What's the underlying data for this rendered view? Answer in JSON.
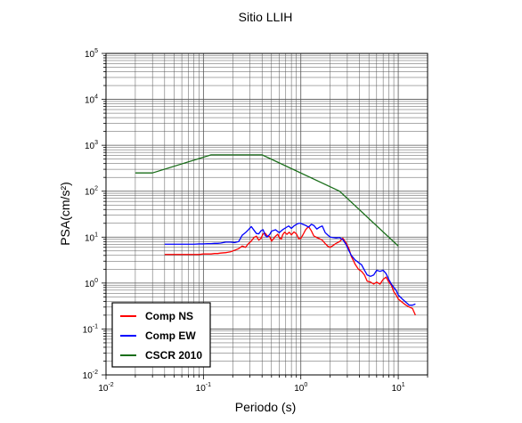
{
  "chart_data": {
    "type": "line",
    "title": "Sitio LLIH",
    "xlabel": "Periodo (s)",
    "ylabel": "PSA(cm/s²)",
    "x_scale": "log",
    "y_scale": "log",
    "xlim": [
      0.01,
      20
    ],
    "ylim": [
      0.01,
      100000
    ],
    "grid": true,
    "legend_position": "bottom-left",
    "x_ticks": [
      {
        "base": "10",
        "exp": "-2",
        "value": 0.01
      },
      {
        "base": "10",
        "exp": "-1",
        "value": 0.1
      },
      {
        "base": "10",
        "exp": "0",
        "value": 1
      },
      {
        "base": "10",
        "exp": "1",
        "value": 10
      }
    ],
    "y_ticks": [
      {
        "base": "10",
        "exp": "-2",
        "value": 0.01
      },
      {
        "base": "10",
        "exp": "-1",
        "value": 0.1
      },
      {
        "base": "10",
        "exp": "0",
        "value": 1
      },
      {
        "base": "10",
        "exp": "1",
        "value": 10
      },
      {
        "base": "10",
        "exp": "2",
        "value": 100
      },
      {
        "base": "10",
        "exp": "3",
        "value": 1000
      },
      {
        "base": "10",
        "exp": "4",
        "value": 10000
      },
      {
        "base": "10",
        "exp": "5",
        "value": 100000
      }
    ],
    "series": [
      {
        "name": "Comp NS",
        "color": "#ff0000",
        "points": [
          [
            0.04,
            4.2
          ],
          [
            0.05,
            4.2
          ],
          [
            0.06,
            4.2
          ],
          [
            0.07,
            4.2
          ],
          [
            0.08,
            4.2
          ],
          [
            0.09,
            4.2
          ],
          [
            0.1,
            4.3
          ],
          [
            0.11,
            4.3
          ],
          [
            0.12,
            4.3
          ],
          [
            0.13,
            4.4
          ],
          [
            0.14,
            4.4
          ],
          [
            0.15,
            4.5
          ],
          [
            0.17,
            4.6
          ],
          [
            0.19,
            4.8
          ],
          [
            0.21,
            5.2
          ],
          [
            0.23,
            5.6
          ],
          [
            0.25,
            6.4
          ],
          [
            0.27,
            6.0
          ],
          [
            0.29,
            7.2
          ],
          [
            0.31,
            8.2
          ],
          [
            0.33,
            9.8
          ],
          [
            0.35,
            10.5
          ],
          [
            0.37,
            8.6
          ],
          [
            0.39,
            9.4
          ],
          [
            0.41,
            11.8
          ],
          [
            0.43,
            12.2
          ],
          [
            0.45,
            10.8
          ],
          [
            0.48,
            10.2
          ],
          [
            0.5,
            8.2
          ],
          [
            0.52,
            9.0
          ],
          [
            0.55,
            10.5
          ],
          [
            0.58,
            11.6
          ],
          [
            0.6,
            9.8
          ],
          [
            0.63,
            9.0
          ],
          [
            0.65,
            11.2
          ],
          [
            0.68,
            12.8
          ],
          [
            0.72,
            11.5
          ],
          [
            0.76,
            12.8
          ],
          [
            0.8,
            11.2
          ],
          [
            0.85,
            13.0
          ],
          [
            0.9,
            11.8
          ],
          [
            0.95,
            9.2
          ],
          [
            1.0,
            9.4
          ],
          [
            1.05,
            11.2
          ],
          [
            1.12,
            14.5
          ],
          [
            1.2,
            17.0
          ],
          [
            1.28,
            13.8
          ],
          [
            1.36,
            10.6
          ],
          [
            1.46,
            9.8
          ],
          [
            1.56,
            9.2
          ],
          [
            1.66,
            8.6
          ],
          [
            1.78,
            7.2
          ],
          [
            1.9,
            6.3
          ],
          [
            2.0,
            6.0
          ],
          [
            2.15,
            6.6
          ],
          [
            2.3,
            7.3
          ],
          [
            2.5,
            8.0
          ],
          [
            2.7,
            9.5
          ],
          [
            2.9,
            7.6
          ],
          [
            3.1,
            5.8
          ],
          [
            3.3,
            3.8
          ],
          [
            3.6,
            2.6
          ],
          [
            3.9,
            2.0
          ],
          [
            4.2,
            1.8
          ],
          [
            4.5,
            1.5
          ],
          [
            4.8,
            1.1
          ],
          [
            5.2,
            1.05
          ],
          [
            5.6,
            0.95
          ],
          [
            6.0,
            1.05
          ],
          [
            6.5,
            0.95
          ],
          [
            7.0,
            1.2
          ],
          [
            7.5,
            1.35
          ],
          [
            8.0,
            1.05
          ],
          [
            8.5,
            0.9
          ],
          [
            9.0,
            0.65
          ],
          [
            9.5,
            0.55
          ],
          [
            10.0,
            0.45
          ],
          [
            11.0,
            0.38
          ],
          [
            12.0,
            0.33
          ],
          [
            13.0,
            0.3
          ],
          [
            14.0,
            0.28
          ],
          [
            15.0,
            0.2
          ]
        ]
      },
      {
        "name": "Comp EW",
        "color": "#0000ff",
        "points": [
          [
            0.04,
            7.0
          ],
          [
            0.05,
            7.0
          ],
          [
            0.06,
            7.0
          ],
          [
            0.07,
            7.0
          ],
          [
            0.08,
            7.0
          ],
          [
            0.09,
            7.1
          ],
          [
            0.1,
            7.1
          ],
          [
            0.11,
            7.2
          ],
          [
            0.12,
            7.2
          ],
          [
            0.13,
            7.3
          ],
          [
            0.14,
            7.3
          ],
          [
            0.15,
            7.4
          ],
          [
            0.17,
            7.8
          ],
          [
            0.19,
            7.8
          ],
          [
            0.21,
            7.6
          ],
          [
            0.23,
            8.0
          ],
          [
            0.25,
            11.0
          ],
          [
            0.27,
            12.5
          ],
          [
            0.29,
            14.5
          ],
          [
            0.31,
            17.0
          ],
          [
            0.33,
            14.2
          ],
          [
            0.35,
            12.0
          ],
          [
            0.37,
            11.8
          ],
          [
            0.39,
            13.8
          ],
          [
            0.41,
            14.5
          ],
          [
            0.43,
            11.0
          ],
          [
            0.45,
            10.0
          ],
          [
            0.48,
            11.5
          ],
          [
            0.5,
            13.5
          ],
          [
            0.55,
            14.5
          ],
          [
            0.6,
            12.5
          ],
          [
            0.65,
            14.5
          ],
          [
            0.7,
            16.0
          ],
          [
            0.75,
            17.5
          ],
          [
            0.8,
            15.5
          ],
          [
            0.85,
            17.5
          ],
          [
            0.9,
            19.0
          ],
          [
            0.95,
            20.0
          ],
          [
            1.0,
            20.0
          ],
          [
            1.05,
            19.0
          ],
          [
            1.12,
            18.0
          ],
          [
            1.2,
            16.5
          ],
          [
            1.28,
            19.0
          ],
          [
            1.36,
            18.0
          ],
          [
            1.46,
            15.0
          ],
          [
            1.56,
            16.5
          ],
          [
            1.66,
            17.5
          ],
          [
            1.78,
            12.5
          ],
          [
            1.9,
            11.0
          ],
          [
            2.0,
            10.0
          ],
          [
            2.15,
            9.8
          ],
          [
            2.3,
            9.6
          ],
          [
            2.5,
            9.8
          ],
          [
            2.7,
            8.8
          ],
          [
            2.9,
            7.0
          ],
          [
            3.1,
            5.2
          ],
          [
            3.3,
            4.0
          ],
          [
            3.6,
            3.2
          ],
          [
            3.9,
            2.8
          ],
          [
            4.2,
            2.5
          ],
          [
            4.5,
            1.9
          ],
          [
            4.8,
            1.5
          ],
          [
            5.2,
            1.4
          ],
          [
            5.6,
            1.5
          ],
          [
            6.0,
            1.9
          ],
          [
            6.5,
            1.8
          ],
          [
            7.0,
            1.9
          ],
          [
            7.5,
            1.6
          ],
          [
            8.0,
            1.2
          ],
          [
            8.5,
            0.95
          ],
          [
            9.0,
            0.8
          ],
          [
            9.5,
            0.7
          ],
          [
            10.0,
            0.55
          ],
          [
            11.0,
            0.45
          ],
          [
            12.0,
            0.38
          ],
          [
            13.0,
            0.33
          ],
          [
            14.0,
            0.33
          ],
          [
            15.0,
            0.35
          ]
        ]
      },
      {
        "name": "CSCR 2010",
        "color": "#1a6e1a",
        "points": [
          [
            0.02,
            250
          ],
          [
            0.03,
            250
          ],
          [
            0.12,
            620
          ],
          [
            0.4,
            620
          ],
          [
            2.5,
            100
          ],
          [
            10.0,
            6.4
          ]
        ]
      }
    ]
  }
}
